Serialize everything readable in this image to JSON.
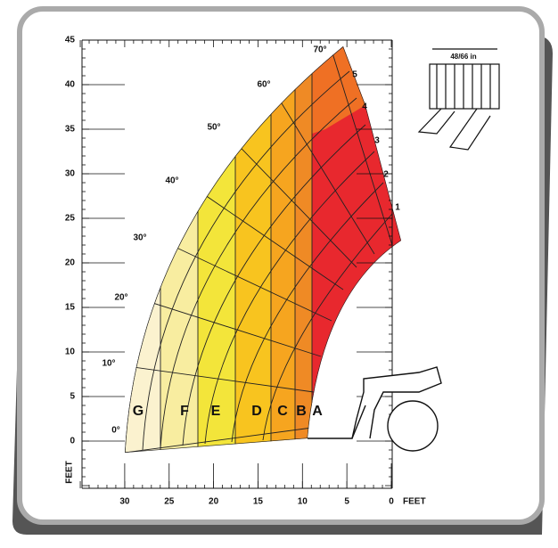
{
  "x_axis": {
    "ticks": [
      30,
      25,
      20,
      15,
      10,
      5,
      0
    ],
    "unit": "FEET"
  },
  "y_axis": {
    "ticks": [
      0,
      5,
      10,
      15,
      20,
      25,
      30,
      35,
      40,
      45
    ],
    "unit": "FEET"
  },
  "angles": [
    "0°",
    "10°",
    "20°",
    "30°",
    "40°",
    "50°",
    "60°",
    "70°"
  ],
  "extensions": [
    "1",
    "2",
    "3",
    "4",
    "5"
  ],
  "zones": [
    "G",
    "F",
    "E",
    "D",
    "C",
    "B",
    "A"
  ],
  "attachment": {
    "label": "48/66 in"
  }
}
